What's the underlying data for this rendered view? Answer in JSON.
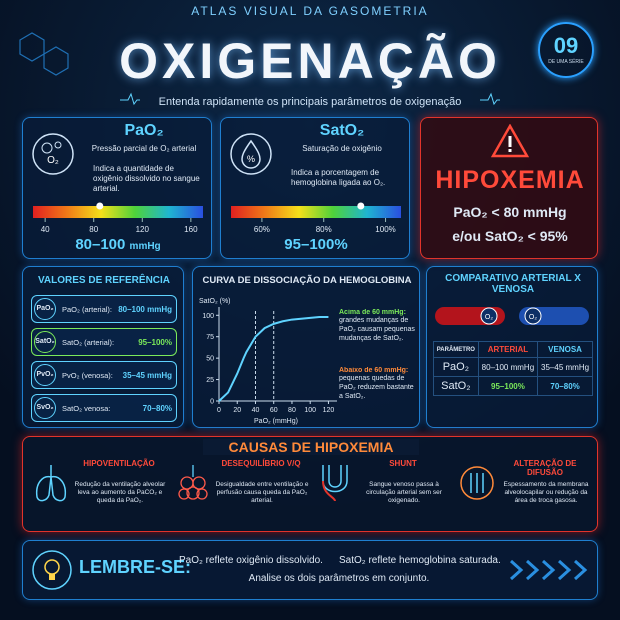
{
  "header": {
    "series": "ATLAS VISUAL DA GASOMETRIA",
    "badge_number": "09",
    "badge_text": "DE UMA SÉRIE",
    "title": "OXIGENAÇÃO",
    "subtitle": "Entenda rapidamente os principais parâmetros de oxigenação"
  },
  "pao2_card": {
    "title": "PaO₂",
    "subtitle": "Pressão parcial de O₂ arterial",
    "description": "Indica a quantidade de oxigênio dissolvido no sangue arterial.",
    "scale": {
      "xlim": [
        30,
        170
      ],
      "ticks": [
        40,
        80,
        120,
        160
      ],
      "marker": 85
    },
    "range": "80–100",
    "unit": "mmHg"
  },
  "sat_card": {
    "title": "SatO₂",
    "subtitle": "Saturação de oxigênio",
    "description": "Indica a porcentagem de hemoglobina ligada ao O₂.",
    "scale": {
      "xlim": [
        50,
        105
      ],
      "ticks": [
        {
          "value": 60,
          "label": "60%"
        },
        {
          "value": 80,
          "label": "80%"
        },
        {
          "value": 100,
          "label": "100%"
        }
      ],
      "marker": 92
    },
    "range": "95–100%"
  },
  "hypoxemia": {
    "title": "HIPOXEMIA",
    "criteria": [
      "PaO₂ < 80 mmHg",
      "e/ou SatO₂ < 95%"
    ]
  },
  "reference": {
    "title": "VALORES DE REFERÊNCIA",
    "rows": [
      [
        "PaO₂",
        "PaO₂ (arterial):",
        "80–100 mmHg"
      ],
      [
        "SatO₂",
        "SatO₂ (arterial):",
        "95–100%"
      ],
      [
        "PvO₂",
        "PvO₂ (venosa):",
        "35–45 mmHg"
      ],
      [
        "SvO₂",
        "SatO₂ venosa:",
        "70–80%"
      ]
    ]
  },
  "chart_data": {
    "type": "line",
    "title": "CURVA DE DISSOCIAÇÃO DA HEMOGLOBINA",
    "y_label": "SatO₂ (%)",
    "x_label": "PaO₂ (mmHg)",
    "x": [
      0,
      10,
      20,
      27,
      30,
      40,
      50,
      60,
      70,
      80,
      90,
      100,
      110,
      120
    ],
    "values": [
      0,
      10,
      32,
      50,
      57,
      75,
      85,
      90,
      93,
      95,
      96,
      97,
      98,
      98
    ],
    "color": "#5fd3ff",
    "xlim": [
      0,
      125
    ],
    "ylim": [
      0,
      105
    ],
    "xticks": [
      0,
      20,
      40,
      60,
      80,
      100,
      120
    ],
    "yticks": [
      0,
      25,
      50,
      75,
      100
    ],
    "reference_lines": [
      40,
      60
    ],
    "notes": [
      {
        "heading": "Acima de 60 mmHg:",
        "text": "grandes mudanças de PaO₂ causam pequenas mudanças de SatO₂."
      },
      {
        "heading": "Abaixo de 60 mmHg:",
        "text": "pequenas quedas de PaO₂ reduzem bastante a SatO₂."
      }
    ]
  },
  "comparison": {
    "title": "COMPARATIVO ARTERIAL X VENOSA",
    "headers": [
      "PARÂMETRO",
      "ARTERIAL",
      "VENOSA"
    ],
    "rows": [
      [
        "PaO₂",
        "80–100 mmHg",
        "35–45 mmHg"
      ],
      [
        "SatO₂",
        "95–100%",
        "70–80%"
      ]
    ],
    "icons": [
      "O₂",
      "O₂"
    ]
  },
  "causes": {
    "title": "CAUSAS DE HIPOXEMIA",
    "items": [
      {
        "title": "HIPOVENTILAÇÃO",
        "text": "Redução da ventilação alveolar leva ao aumento da PaCO₂ e queda da PaO₂."
      },
      {
        "title": "DESEQUILÍBRIO V/Q",
        "text": "Desigualdade entre ventilação e perfusão causa queda da PaO₂ arterial."
      },
      {
        "title": "SHUNT",
        "text": "Sangue venoso passa à circulação arterial sem ser oxigenado."
      },
      {
        "title": "ALTERAÇÃO DE DIFUSÃO",
        "text": "Espessamento da membrana alveolocapilar ou redução da área de troca gasosa."
      }
    ]
  },
  "footer": {
    "label": "LEMBRE-SE:",
    "point1": "PaO₂ reflete oxigênio dissolvido.",
    "point2": "SatO₂ reflete hemoglobina saturada.",
    "point3": "Analise os dois parâmetros em conjunto."
  }
}
